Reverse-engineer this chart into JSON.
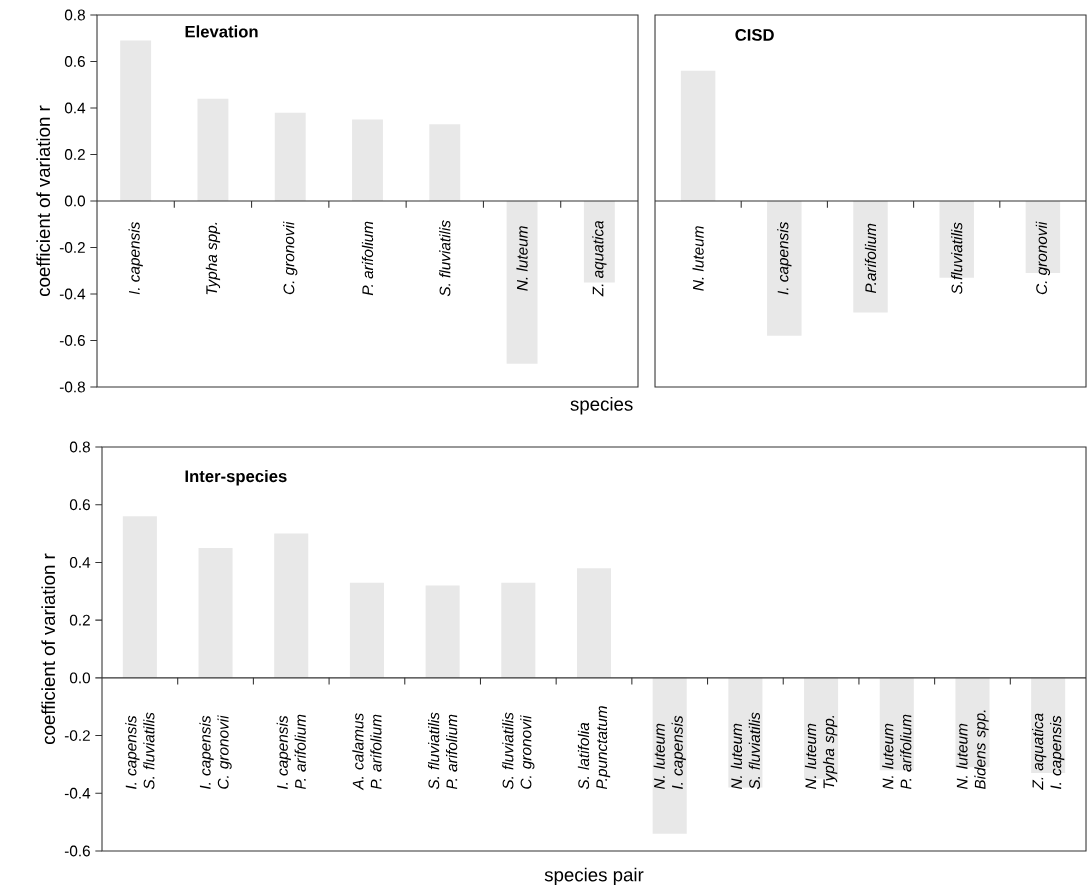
{
  "chart_data": [
    {
      "type": "bar",
      "title": "Elevation",
      "xlabel": "species",
      "ylabel": "coefficient of variation  r",
      "categories": [
        "I. capensis",
        "Typha spp.",
        "C. gronovii",
        "P. arifolium",
        "S. fluviatilis",
        "N. luteum",
        "Z. aquatica"
      ],
      "values": [
        0.69,
        0.44,
        0.38,
        0.35,
        0.33,
        -0.7,
        -0.35
      ],
      "color": "#e8e8e8",
      "ylim": [
        -0.8,
        0.8
      ],
      "yticks": [
        {
          "value": -0.8,
          "label": "-0.8"
        },
        {
          "value": -0.6,
          "label": "-0.6"
        },
        {
          "value": -0.4,
          "label": "-0.4"
        },
        {
          "value": -0.2,
          "label": "-0.2"
        },
        {
          "value": 0,
          "label": "0.0"
        },
        {
          "value": 0.2,
          "label": "0.2"
        },
        {
          "value": 0.4,
          "label": "0.4"
        },
        {
          "value": 0.6,
          "label": "0.6"
        },
        {
          "value": 0.8,
          "label": "0.8"
        }
      ]
    },
    {
      "type": "bar",
      "title": "CISD",
      "categories": [
        "N. luteum",
        "I. capensis",
        "P.arifolium",
        "S.fluviatilis",
        "C. gronovii"
      ],
      "values": [
        0.56,
        -0.58,
        -0.48,
        -0.33,
        -0.31
      ],
      "color": "#e8e8e8",
      "ylim": [
        -0.8,
        0.8
      ],
      "tick_labels": "x"
    },
    {
      "type": "bar",
      "title": "Inter-species",
      "xlabel": "species pair",
      "ylabel": "coefficient of variation  r",
      "categories": [
        "I. capensis S. fluviatilis",
        "I. capensis C. gronovii",
        "I. capensis P. arifolium",
        "A. calamus P. arifolium",
        "S. fluviatilis P. arifolium",
        "S. fluviatilis C. gronovii",
        "S. latifolia P.punctatum",
        "N. luteum I. capensis",
        "N. luteum S. fluviatilis",
        "N. luteum Typha spp.",
        "N. luteum P. arifolium",
        "N. luteum Bidens spp.",
        "Z. aquatica I. capensis"
      ],
      "values": [
        0.56,
        0.45,
        0.5,
        0.33,
        0.32,
        0.33,
        0.38,
        -0.54,
        -0.38,
        -0.35,
        -0.32,
        -0.31,
        -0.33
      ],
      "color": "#e8e8e8",
      "ylim": [
        -0.6,
        0.8
      ],
      "yticks": [
        {
          "value": -0.6,
          "label": "-0.6"
        },
        {
          "value": -0.4,
          "label": "-0.4"
        },
        {
          "value": -0.2,
          "label": "-0.2"
        },
        {
          "value": 0,
          "label": "0.0"
        },
        {
          "value": 0.2,
          "label": "0.2"
        },
        {
          "value": 0.4,
          "label": "0.4"
        },
        {
          "value": 0.6,
          "label": "0.6"
        },
        {
          "value": 0.8,
          "label": "0.8"
        }
      ]
    }
  ]
}
